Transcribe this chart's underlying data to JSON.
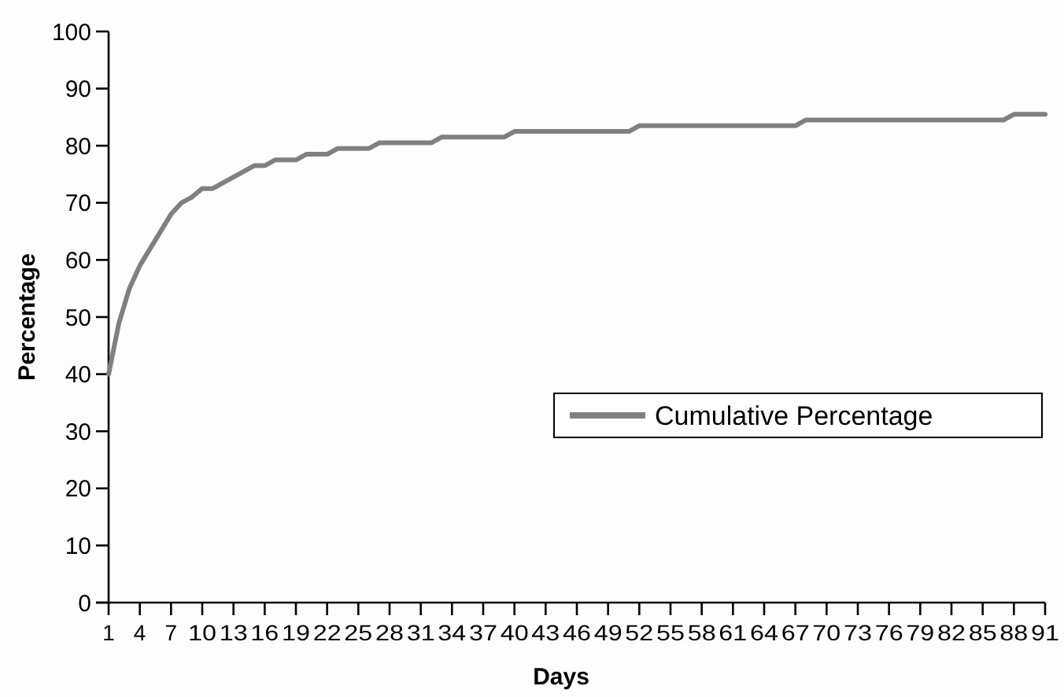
{
  "chart_data": {
    "type": "line",
    "xlabel": "Days",
    "ylabel": "Percentage",
    "xlim": [
      1,
      91
    ],
    "xticks": [
      1,
      4,
      7,
      10,
      13,
      16,
      19,
      22,
      25,
      28,
      31,
      34,
      37,
      40,
      43,
      46,
      49,
      52,
      55,
      58,
      61,
      64,
      67,
      70,
      73,
      76,
      79,
      82,
      85,
      88,
      91
    ],
    "ylim": [
      0,
      100
    ],
    "yticks": [
      0,
      10,
      20,
      30,
      40,
      50,
      60,
      70,
      80,
      90,
      100
    ],
    "grid": false,
    "legend": "right",
    "marker": "none",
    "line_style": "solid",
    "x": [
      1,
      2,
      3,
      4,
      5,
      6,
      7,
      8,
      9,
      10,
      11,
      12,
      13,
      14,
      15,
      16,
      17,
      18,
      19,
      20,
      21,
      22,
      23,
      24,
      25,
      26,
      27,
      28,
      29,
      30,
      31,
      32,
      33,
      34,
      35,
      36,
      37,
      38,
      39,
      40,
      41,
      42,
      43,
      44,
      45,
      46,
      47,
      48,
      49,
      50,
      51,
      52,
      53,
      54,
      55,
      56,
      57,
      58,
      59,
      60,
      61,
      62,
      63,
      64,
      65,
      66,
      67,
      68,
      69,
      70,
      71,
      72,
      73,
      74,
      75,
      76,
      77,
      78,
      79,
      80,
      81,
      82,
      83,
      84,
      85,
      86,
      87,
      88,
      89,
      90,
      91
    ],
    "series": [
      {
        "name": "Cumulative Percentage",
        "color": "#808080",
        "values": [
          40,
          49,
          55,
          59,
          62,
          65,
          68,
          70,
          71,
          72.5,
          72.5,
          73.5,
          74.5,
          75.5,
          76.5,
          76.5,
          77.5,
          77.5,
          77.5,
          78.5,
          78.5,
          78.5,
          79.5,
          79.5,
          79.5,
          79.5,
          80.5,
          80.5,
          80.5,
          80.5,
          80.5,
          80.5,
          81.5,
          81.5,
          81.5,
          81.5,
          81.5,
          81.5,
          81.5,
          82.5,
          82.5,
          82.5,
          82.5,
          82.5,
          82.5,
          82.5,
          82.5,
          82.5,
          82.5,
          82.5,
          82.5,
          83.5,
          83.5,
          83.5,
          83.5,
          83.5,
          83.5,
          83.5,
          83.5,
          83.5,
          83.5,
          83.5,
          83.5,
          83.5,
          83.5,
          83.5,
          83.5,
          84.5,
          84.5,
          84.5,
          84.5,
          84.5,
          84.5,
          84.5,
          84.5,
          84.5,
          84.5,
          84.5,
          84.5,
          84.5,
          84.5,
          84.5,
          84.5,
          84.5,
          84.5,
          84.5,
          84.5,
          85.5,
          85.5,
          85.5,
          85.5
        ]
      }
    ]
  }
}
